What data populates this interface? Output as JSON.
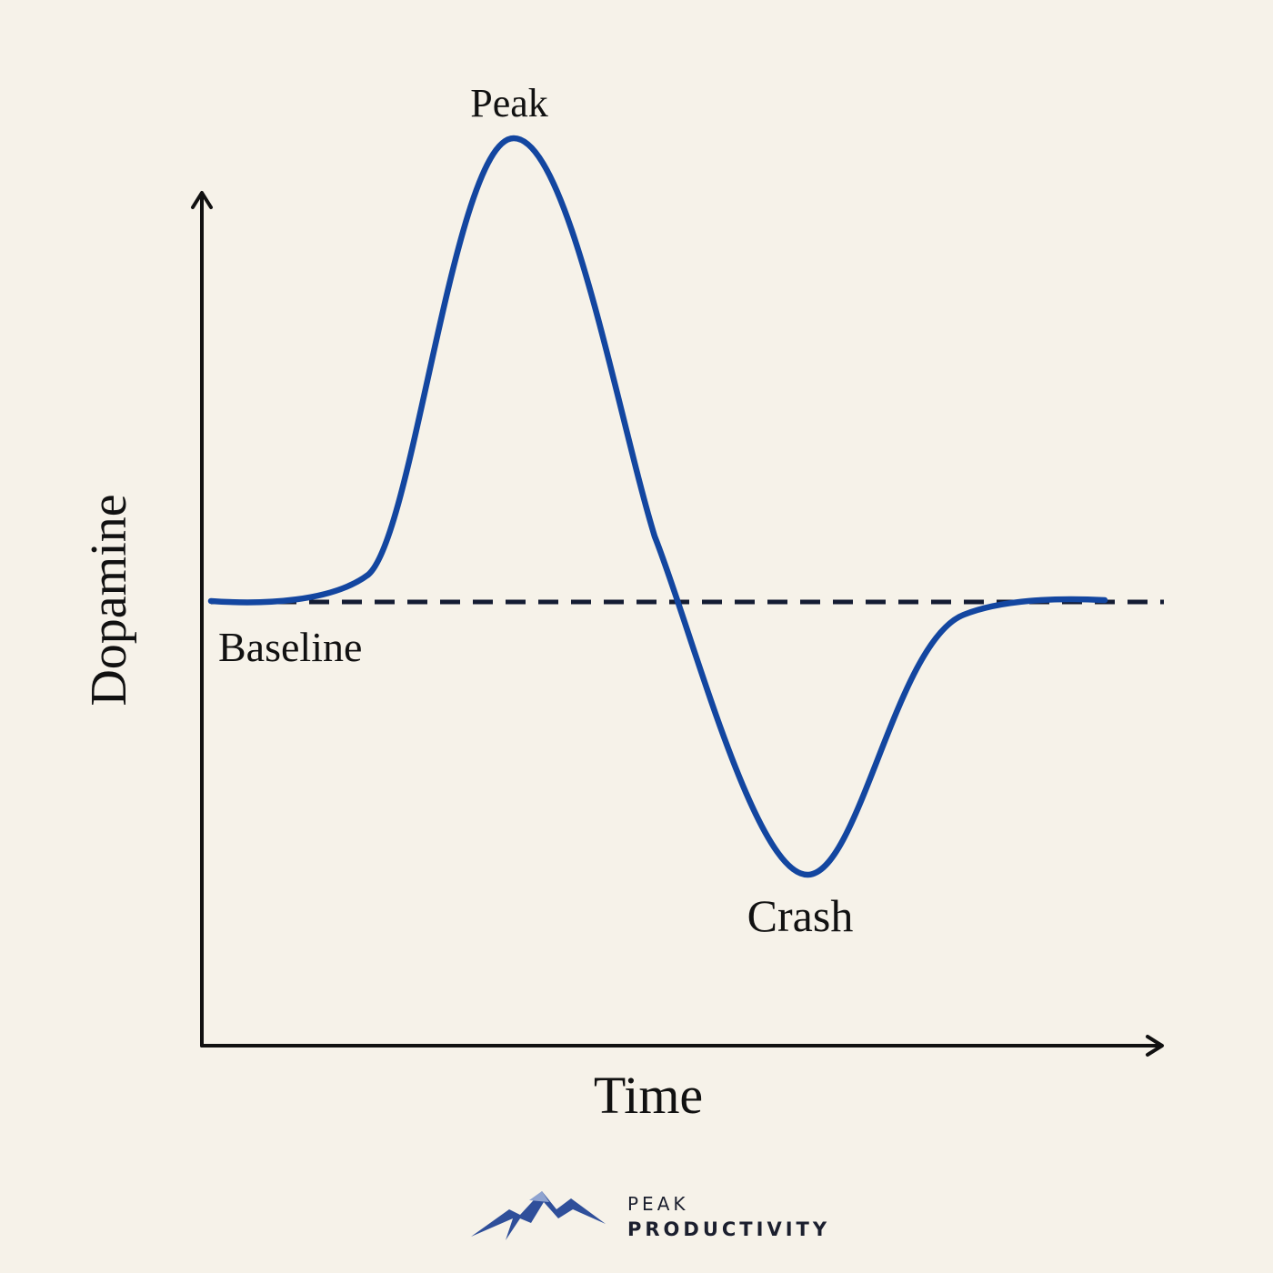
{
  "axes": {
    "y_label": "Dopamine",
    "x_label": "Time"
  },
  "annotations": {
    "peak": "Peak",
    "baseline": "Baseline",
    "crash": "Crash"
  },
  "logo": {
    "line1": "PEAK",
    "line2": "PRODUCTIVITY"
  }
}
